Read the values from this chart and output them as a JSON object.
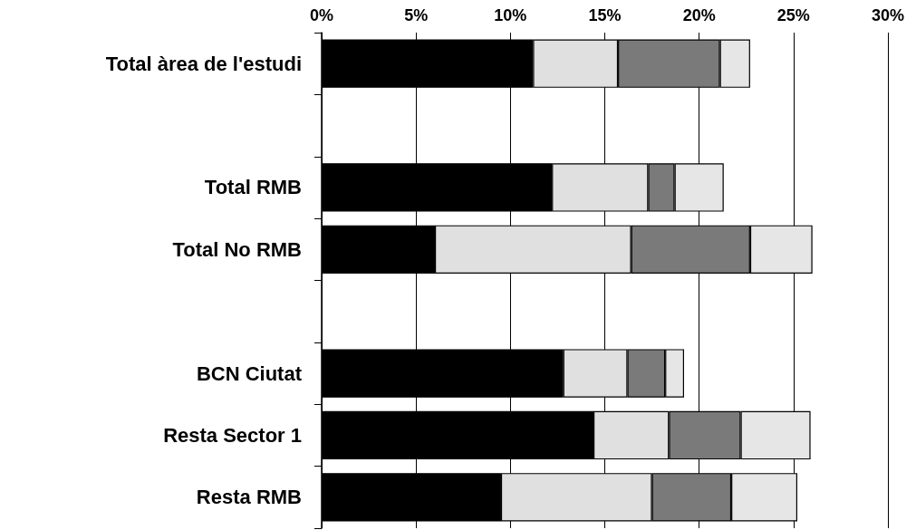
{
  "chart_data": {
    "type": "bar",
    "orientation": "horizontal",
    "stacked": true,
    "categories": [
      "Total àrea de l'estudi",
      null,
      "Total RMB",
      "Total No RMB",
      null,
      "BCN Ciutat",
      "Resta Sector 1",
      "Resta RMB"
    ],
    "series": [
      {
        "color": "#000000",
        "values": [
          11.2,
          null,
          12.2,
          6.0,
          null,
          12.8,
          14.4,
          9.5
        ]
      },
      {
        "color": "#e0e0e0",
        "values": [
          4.5,
          null,
          5.1,
          10.4,
          null,
          3.4,
          4.0,
          8.0
        ]
      },
      {
        "color": "#7a7a7a",
        "values": [
          5.4,
          null,
          1.4,
          6.3,
          null,
          2.0,
          3.8,
          4.2
        ]
      },
      {
        "color": "#e6e6e6",
        "values": [
          1.6,
          null,
          2.6,
          3.3,
          null,
          1.0,
          3.7,
          3.5
        ]
      }
    ],
    "xlim": [
      0,
      30
    ],
    "xticks": [
      {
        "value": 0,
        "label": "0%"
      },
      {
        "value": 5,
        "label": "5%"
      },
      {
        "value": 10,
        "label": "10%"
      },
      {
        "value": 15,
        "label": "15%"
      },
      {
        "value": 20,
        "label": "20%"
      },
      {
        "value": 25,
        "label": "25%"
      },
      {
        "value": 30,
        "label": "30%"
      }
    ],
    "grid": "x"
  }
}
